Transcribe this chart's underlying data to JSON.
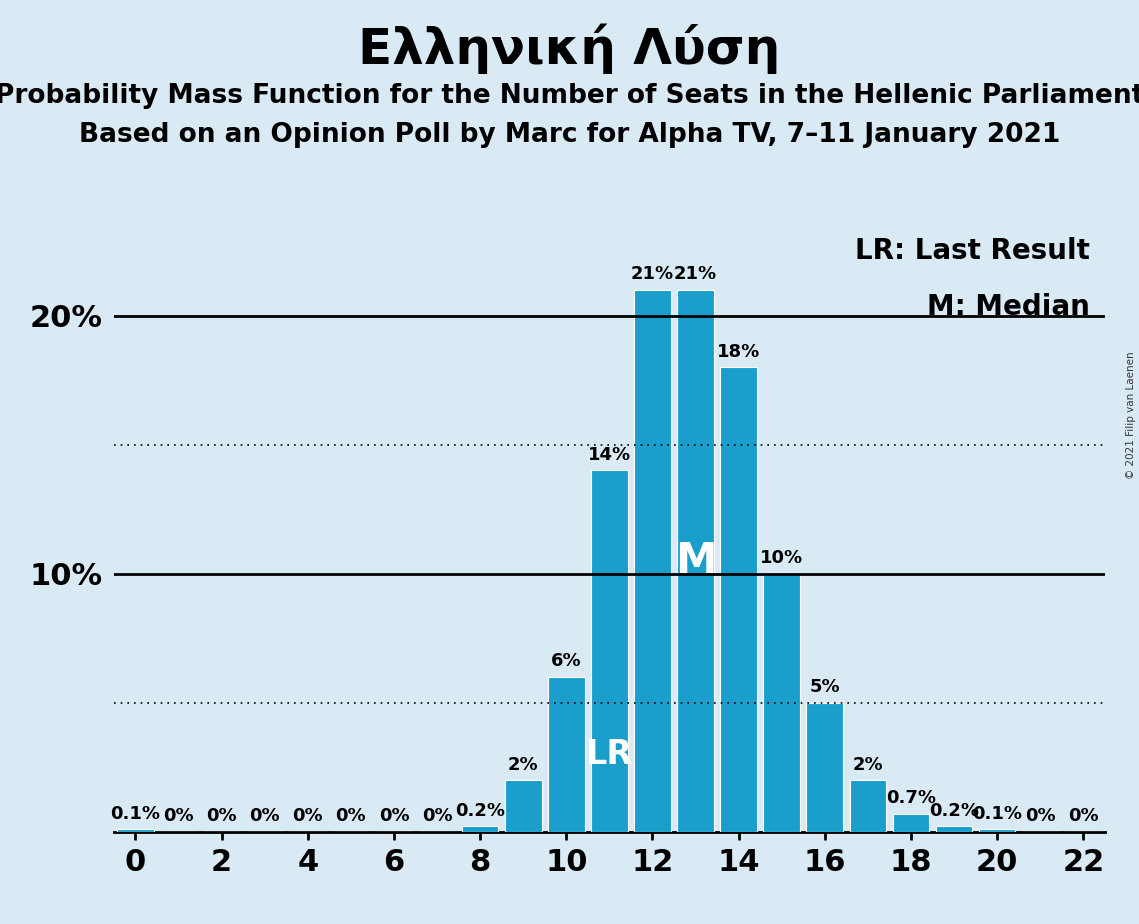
{
  "title": "Ελληνική Λύση",
  "subtitle1": "Probability Mass Function for the Number of Seats in the Hellenic Parliament",
  "subtitle2": "Based on an Opinion Poll by Marc for Alpha TV, 7–11 January 2021",
  "copyright": "© 2021 Filip van Laenen",
  "background_color": "#daeaf5",
  "bar_color": "#1a9fcc",
  "seats": [
    0,
    1,
    2,
    3,
    4,
    5,
    6,
    7,
    8,
    9,
    10,
    11,
    12,
    13,
    14,
    15,
    16,
    17,
    18,
    19,
    20,
    21,
    22
  ],
  "probabilities": [
    0.1,
    0.0,
    0.0,
    0.0,
    0.0,
    0.0,
    0.0,
    0.0,
    0.2,
    2.0,
    6.0,
    14.0,
    21.0,
    21.0,
    18.0,
    10.0,
    5.0,
    2.0,
    0.7,
    0.2,
    0.1,
    0.0,
    0.0
  ],
  "labels": [
    "0.1%",
    "0%",
    "0%",
    "0%",
    "0%",
    "0%",
    "0%",
    "0%",
    "0.2%",
    "2%",
    "6%",
    "14%",
    "21%",
    "21%",
    "18%",
    "10%",
    "5%",
    "2%",
    "0.7%",
    "0.2%",
    "0.1%",
    "0%",
    "0%"
  ],
  "median_seat": 13,
  "lr_seat": 11,
  "xlim": [
    -0.5,
    22.5
  ],
  "ylim": [
    0,
    24
  ],
  "solid_yticks": [
    10,
    20
  ],
  "dotted_yticks": [
    5,
    15
  ],
  "legend_lr": "LR: Last Result",
  "legend_m": "M: Median",
  "title_fontsize": 36,
  "subtitle_fontsize": 19,
  "label_fontsize": 13,
  "axis_fontsize": 22,
  "legend_fontsize": 20
}
